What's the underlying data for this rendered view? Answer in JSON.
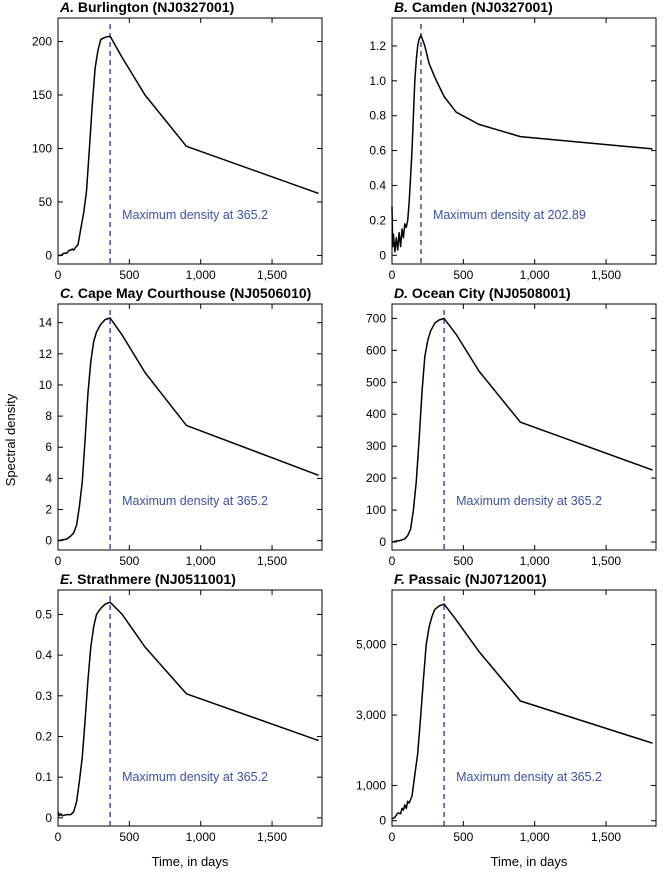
{
  "figure": {
    "ylabel": "Spectral density",
    "xlabel": "Time, in days"
  },
  "chart_data": [
    {
      "type": "line",
      "letter": "A.",
      "title": "Burlington (NJ0327001)",
      "xlim": [
        0,
        1850
      ],
      "ylim": [
        -8,
        222
      ],
      "xticks": [
        0,
        500,
        1000,
        1500
      ],
      "xtick_labels": [
        "0",
        "500",
        "1,000",
        "1,500"
      ],
      "yticks": [
        0,
        50,
        100,
        150,
        200
      ],
      "ytick_labels": [
        "0",
        "50",
        "100",
        "150",
        "200"
      ],
      "max_x": 365.2,
      "annotation": "Maximum density at 365.2",
      "x": [
        0,
        20,
        40,
        60,
        80,
        90,
        100,
        110,
        120,
        140,
        160,
        180,
        200,
        220,
        240,
        260,
        280,
        300,
        330,
        365.2,
        450,
        610,
        900,
        1826
      ],
      "y": [
        0,
        0,
        2,
        2,
        5,
        5,
        6,
        5,
        7,
        10,
        25,
        40,
        60,
        100,
        140,
        175,
        192,
        202,
        204,
        205,
        185,
        150,
        102,
        58
      ]
    },
    {
      "type": "line",
      "letter": "B.",
      "title": "Camden (NJ0327001)",
      "xlim": [
        0,
        1850
      ],
      "ylim": [
        -0.05,
        1.36
      ],
      "xticks": [
        0,
        500,
        1000,
        1500
      ],
      "xtick_labels": [
        "0",
        "500",
        "1,000",
        "1,500"
      ],
      "yticks": [
        0,
        0.2,
        0.4,
        0.6,
        0.8,
        1.0,
        1.2
      ],
      "ytick_labels": [
        "0",
        "0.2",
        "0.4",
        "0.6",
        "0.8",
        "1.0",
        "1.2"
      ],
      "max_x": 202.89,
      "annotation": "Maximum density at 202.89",
      "x": [
        0,
        5,
        10,
        20,
        30,
        40,
        50,
        60,
        70,
        80,
        90,
        100,
        110,
        120,
        130,
        140,
        150,
        160,
        170,
        180,
        190,
        202.89,
        230,
        260,
        300,
        365,
        450,
        610,
        900,
        1826
      ],
      "y": [
        0.28,
        0.05,
        0.12,
        0.02,
        0.1,
        0.03,
        0.13,
        0.05,
        0.15,
        0.1,
        0.18,
        0.16,
        0.2,
        0.3,
        0.45,
        0.6,
        0.8,
        1.0,
        1.12,
        1.2,
        1.24,
        1.26,
        1.2,
        1.1,
        1.02,
        0.91,
        0.82,
        0.75,
        0.68,
        0.61
      ]
    },
    {
      "type": "line",
      "letter": "C.",
      "title": "Cape May Courthouse (NJ0506010)",
      "xlim": [
        0,
        1850
      ],
      "ylim": [
        -0.6,
        15.2
      ],
      "xticks": [
        0,
        500,
        1000,
        1500
      ],
      "xtick_labels": [
        "0",
        "500",
        "1,000",
        "1,500"
      ],
      "yticks": [
        0,
        2,
        4,
        6,
        8,
        10,
        12,
        14
      ],
      "ytick_labels": [
        "0",
        "2",
        "4",
        "6",
        "8",
        "10",
        "12",
        "14"
      ],
      "max_x": 365.2,
      "annotation": "Maximum density at 365.2",
      "x": [
        0,
        30,
        60,
        90,
        110,
        130,
        150,
        170,
        190,
        210,
        230,
        250,
        270,
        300,
        330,
        365.2,
        450,
        610,
        900,
        1826
      ],
      "y": [
        0,
        0.05,
        0.1,
        0.3,
        0.5,
        1.0,
        2.2,
        3.8,
        6.5,
        9.5,
        11.5,
        12.8,
        13.4,
        13.9,
        14.2,
        14.3,
        13.2,
        10.8,
        7.4,
        4.2
      ]
    },
    {
      "type": "line",
      "letter": "D.",
      "title": "Ocean City (NJ0508001)",
      "xlim": [
        0,
        1850
      ],
      "ylim": [
        -25,
        745
      ],
      "xticks": [
        0,
        500,
        1000,
        1500
      ],
      "xtick_labels": [
        "0",
        "500",
        "1,000",
        "1,500"
      ],
      "yticks": [
        0,
        100,
        200,
        300,
        400,
        500,
        600,
        700
      ],
      "ytick_labels": [
        "0",
        "100",
        "200",
        "300",
        "400",
        "500",
        "600",
        "700"
      ],
      "max_x": 365.2,
      "annotation": "Maximum density at 365.2",
      "x": [
        0,
        30,
        60,
        90,
        110,
        130,
        150,
        170,
        190,
        210,
        230,
        250,
        270,
        300,
        330,
        365.2,
        450,
        610,
        900,
        1826
      ],
      "y": [
        0,
        3,
        5,
        10,
        20,
        40,
        100,
        190,
        320,
        470,
        580,
        630,
        660,
        685,
        695,
        700,
        650,
        535,
        375,
        225
      ]
    },
    {
      "type": "line",
      "letter": "E.",
      "title": "Strathmere (NJ0511001)",
      "xlim": [
        0,
        1850
      ],
      "ylim": [
        -0.02,
        0.56
      ],
      "xticks": [
        0,
        500,
        1000,
        1500
      ],
      "xtick_labels": [
        "0",
        "500",
        "1,000",
        "1,500"
      ],
      "yticks": [
        0,
        0.1,
        0.2,
        0.3,
        0.4,
        0.5
      ],
      "ytick_labels": [
        "0",
        "0.1",
        "0.2",
        "0.3",
        "0.4",
        "0.5"
      ],
      "max_x": 365.2,
      "annotation": "Maximum density at 365.2",
      "x": [
        0,
        10,
        20,
        30,
        60,
        90,
        110,
        130,
        150,
        170,
        190,
        210,
        230,
        250,
        270,
        300,
        330,
        365.2,
        450,
        610,
        900,
        1826
      ],
      "y": [
        0.015,
        0.005,
        0.01,
        0.005,
        0.008,
        0.008,
        0.015,
        0.04,
        0.09,
        0.15,
        0.24,
        0.34,
        0.42,
        0.47,
        0.5,
        0.515,
        0.525,
        0.53,
        0.5,
        0.42,
        0.305,
        0.19
      ]
    },
    {
      "type": "line",
      "letter": "F.",
      "title": "Passaic (NJ0712001)",
      "xlim": [
        0,
        1850
      ],
      "ylim": [
        -150,
        6550
      ],
      "xticks": [
        0,
        500,
        1000,
        1500
      ],
      "xtick_labels": [
        "0",
        "500",
        "1,000",
        "1,500"
      ],
      "yticks": [
        0,
        1000,
        3000,
        5000
      ],
      "ytick_labels": [
        "0",
        "1,000",
        "3,000",
        "5,000"
      ],
      "max_x": 365.2,
      "annotation": "Maximum density at 365.2",
      "x": [
        0,
        20,
        40,
        60,
        70,
        80,
        90,
        100,
        110,
        120,
        140,
        160,
        180,
        200,
        220,
        240,
        260,
        280,
        300,
        330,
        365.2,
        450,
        610,
        900,
        1826
      ],
      "y": [
        50,
        100,
        220,
        200,
        350,
        300,
        450,
        350,
        550,
        500,
        700,
        1300,
        1900,
        2900,
        4000,
        5000,
        5500,
        5800,
        6000,
        6100,
        6150,
        5700,
        4800,
        3400,
        2200
      ]
    }
  ]
}
